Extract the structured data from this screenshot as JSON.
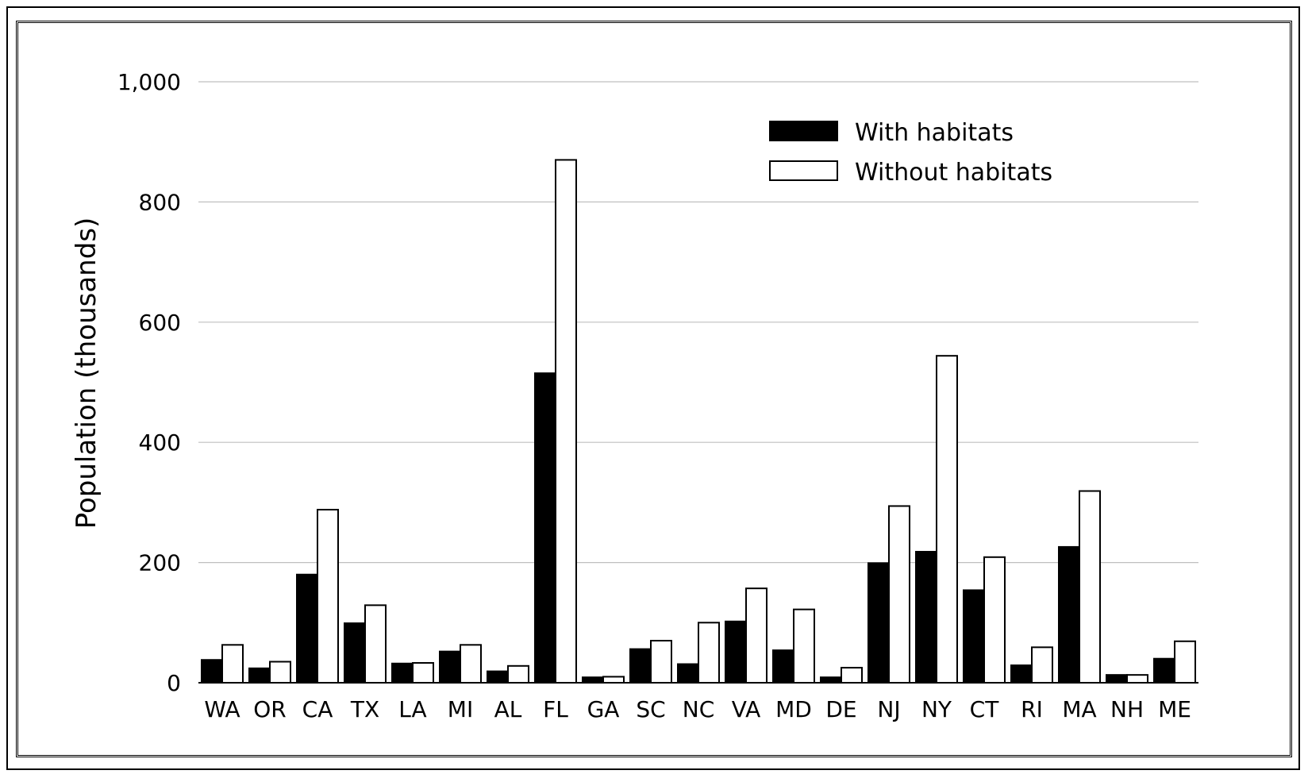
{
  "chart_data": {
    "type": "bar",
    "title": "",
    "xlabel": "",
    "ylabel": "Population (thousands)",
    "ylim": [
      0,
      1000
    ],
    "yticks": [
      0,
      200,
      400,
      600,
      800,
      1000
    ],
    "ytick_labels": [
      "0",
      "200",
      "400",
      "600",
      "800",
      "1,000"
    ],
    "grid": "horizontal",
    "legend_position": "top-right",
    "categories": [
      "WA",
      "OR",
      "CA",
      "TX",
      "LA",
      "MI",
      "AL",
      "FL",
      "GA",
      "SC",
      "NC",
      "VA",
      "MD",
      "DE",
      "NJ",
      "NY",
      "CT",
      "RI",
      "MA",
      "NH",
      "ME"
    ],
    "series": [
      {
        "name": "With habitats",
        "color": "#000000",
        "values": [
          38,
          24,
          180,
          99,
          32,
          52,
          19,
          515,
          9,
          56,
          31,
          102,
          54,
          9,
          199,
          218,
          154,
          29,
          226,
          13,
          40
        ]
      },
      {
        "name": "Without habitats",
        "color": "#ffffff",
        "values": [
          63,
          35,
          288,
          129,
          33,
          63,
          28,
          870,
          10,
          70,
          100,
          157,
          122,
          25,
          294,
          544,
          209,
          59,
          319,
          13,
          69
        ]
      }
    ]
  }
}
